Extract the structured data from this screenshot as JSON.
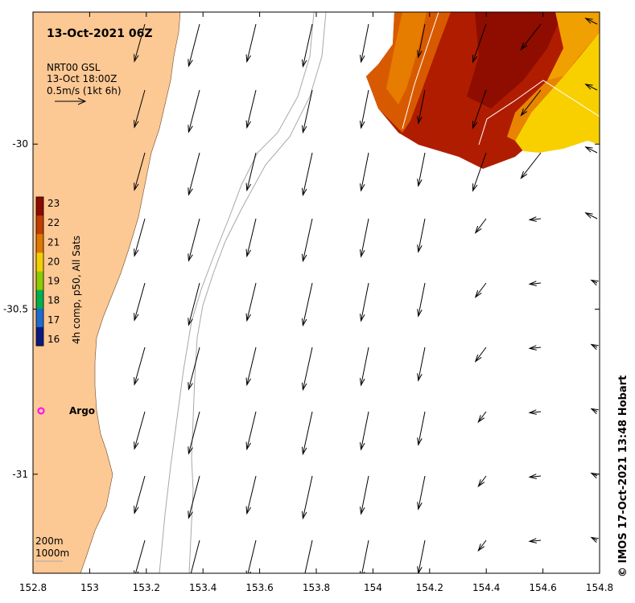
{
  "title": "13-Oct-2021 06Z",
  "legend": {
    "product": "NRT00 GSL",
    "time": "13-Oct 18:00Z",
    "scale": "0.5m/s (1kt 6h)"
  },
  "colorbar": {
    "label": "4h comp, p50, All Sats",
    "values": [
      "23",
      "22",
      "21",
      "20",
      "19",
      "18",
      "17",
      "16"
    ],
    "colors": [
      "#8c0a00",
      "#c23c00",
      "#e07800",
      "#f2d000",
      "#8ccc00",
      "#00b050",
      "#1e6cd0",
      "#0a1a80"
    ]
  },
  "argo": {
    "label": "Argo",
    "color": "#ff00ff",
    "lon": 152.83,
    "lat": -30.82
  },
  "isobath_labels": [
    "200m",
    "1000m"
  ],
  "credit": "© IMOS 17-Oct-2021 13:48 Hobart",
  "axes": {
    "x_ticks": [
      "152.8",
      "153",
      "153.2",
      "153.4",
      "153.6",
      "153.8",
      "154",
      "154.2",
      "154.4",
      "154.6",
      "154.8"
    ],
    "y_ticks": [
      "-30",
      "-30.5",
      "-31"
    ],
    "x_range": [
      152.8,
      154.8
    ],
    "y_range": [
      -31.3,
      -29.6
    ]
  },
  "colors": {
    "land": "#fcc894",
    "isobath": "#a8a8a8",
    "arrow": "#000000"
  }
}
